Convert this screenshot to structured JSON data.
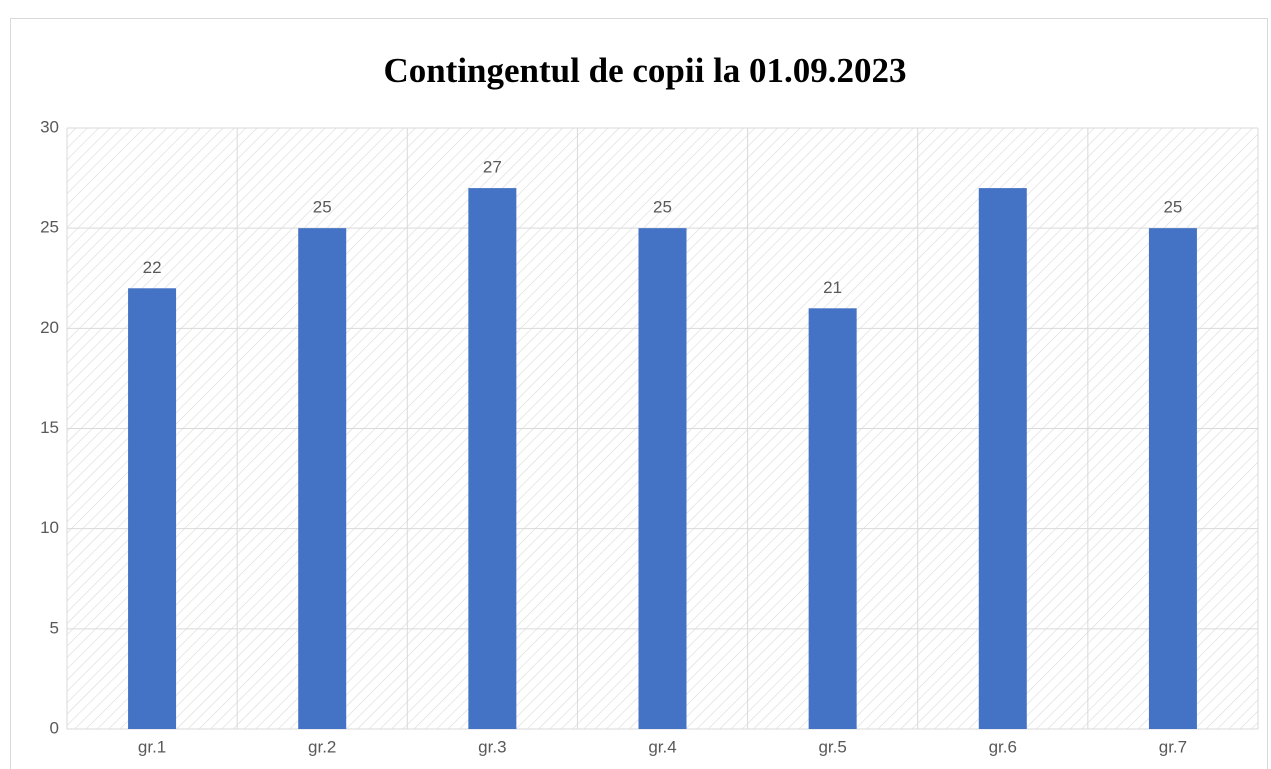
{
  "chart_data": {
    "type": "bar",
    "title": "Contingentul de copii la 01.09.2023",
    "categories": [
      "gr.1",
      "gr.2",
      "gr.3",
      "gr.4",
      "gr.5",
      "gr.6",
      "gr.7"
    ],
    "values": [
      22,
      25,
      27,
      25,
      21,
      27,
      25
    ],
    "value_labels": [
      "22",
      "25",
      "27",
      "25",
      "21",
      null,
      "25"
    ],
    "color": "#4472c4",
    "ylim": [
      0,
      30
    ],
    "yticks": [
      0,
      5,
      10,
      15,
      20,
      25,
      30
    ],
    "grid": true
  }
}
